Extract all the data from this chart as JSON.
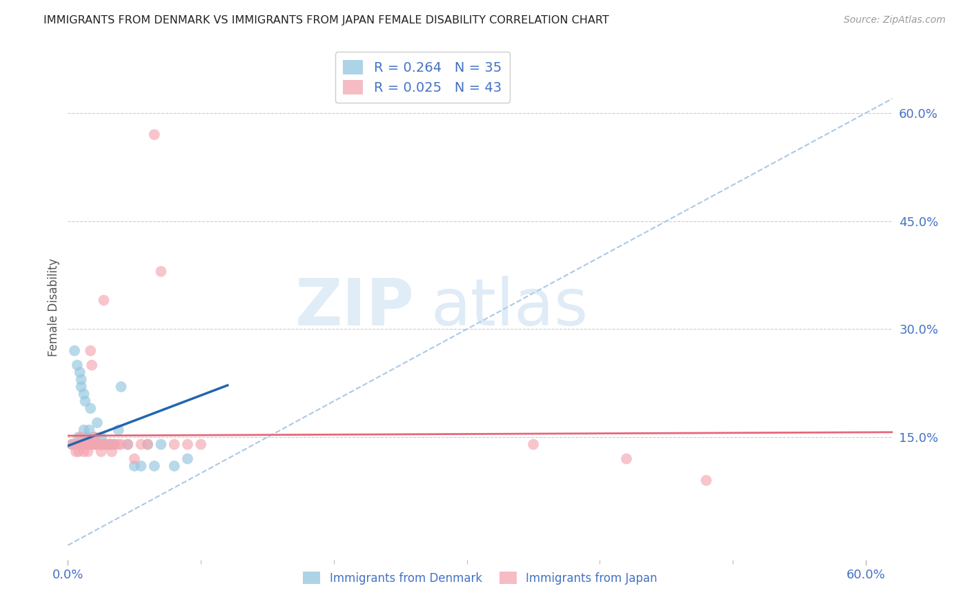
{
  "title": "IMMIGRANTS FROM DENMARK VS IMMIGRANTS FROM JAPAN FEMALE DISABILITY CORRELATION CHART",
  "source": "Source: ZipAtlas.com",
  "ylabel": "Female Disability",
  "xlim": [
    0.0,
    0.62
  ],
  "ylim": [
    -0.02,
    0.68
  ],
  "yticks": [
    0.15,
    0.3,
    0.45,
    0.6
  ],
  "ytick_labels": [
    "15.0%",
    "30.0%",
    "45.0%",
    "60.0%"
  ],
  "denmark_R": 0.264,
  "denmark_N": 35,
  "japan_R": 0.025,
  "japan_N": 43,
  "denmark_color": "#92c5de",
  "japan_color": "#f4a6b0",
  "denmark_line_color": "#2166ac",
  "japan_line_color": "#e8667a",
  "dashed_line_color": "#aac8e8",
  "background_color": "#ffffff",
  "grid_color": "#cccccc",
  "tick_label_color": "#4472c4",
  "denmark_x": [
    0.003,
    0.005,
    0.007,
    0.008,
    0.009,
    0.01,
    0.01,
    0.012,
    0.012,
    0.013,
    0.015,
    0.015,
    0.016,
    0.017,
    0.018,
    0.02,
    0.02,
    0.022,
    0.025,
    0.025,
    0.027,
    0.028,
    0.03,
    0.032,
    0.035,
    0.038,
    0.04,
    0.045,
    0.05,
    0.055,
    0.06,
    0.065,
    0.07,
    0.08,
    0.09
  ],
  "denmark_y": [
    0.14,
    0.27,
    0.25,
    0.15,
    0.24,
    0.23,
    0.22,
    0.16,
    0.21,
    0.2,
    0.15,
    0.14,
    0.16,
    0.19,
    0.14,
    0.14,
    0.15,
    0.17,
    0.14,
    0.15,
    0.14,
    0.14,
    0.14,
    0.14,
    0.14,
    0.16,
    0.22,
    0.14,
    0.11,
    0.11,
    0.14,
    0.11,
    0.14,
    0.11,
    0.12
  ],
  "japan_x": [
    0.003,
    0.005,
    0.006,
    0.007,
    0.008,
    0.009,
    0.01,
    0.01,
    0.012,
    0.012,
    0.013,
    0.015,
    0.015,
    0.016,
    0.017,
    0.018,
    0.018,
    0.02,
    0.02,
    0.022,
    0.023,
    0.025,
    0.025,
    0.027,
    0.028,
    0.03,
    0.032,
    0.033,
    0.035,
    0.038,
    0.04,
    0.045,
    0.05,
    0.055,
    0.06,
    0.065,
    0.07,
    0.08,
    0.09,
    0.1,
    0.35,
    0.42,
    0.48
  ],
  "japan_y": [
    0.14,
    0.14,
    0.13,
    0.14,
    0.13,
    0.14,
    0.15,
    0.14,
    0.13,
    0.14,
    0.14,
    0.14,
    0.13,
    0.14,
    0.27,
    0.25,
    0.14,
    0.15,
    0.14,
    0.14,
    0.14,
    0.13,
    0.14,
    0.34,
    0.14,
    0.14,
    0.14,
    0.13,
    0.14,
    0.14,
    0.14,
    0.14,
    0.12,
    0.14,
    0.14,
    0.57,
    0.38,
    0.14,
    0.14,
    0.14,
    0.14,
    0.12,
    0.09
  ],
  "watermark_zip": "ZIP",
  "watermark_atlas": "atlas"
}
